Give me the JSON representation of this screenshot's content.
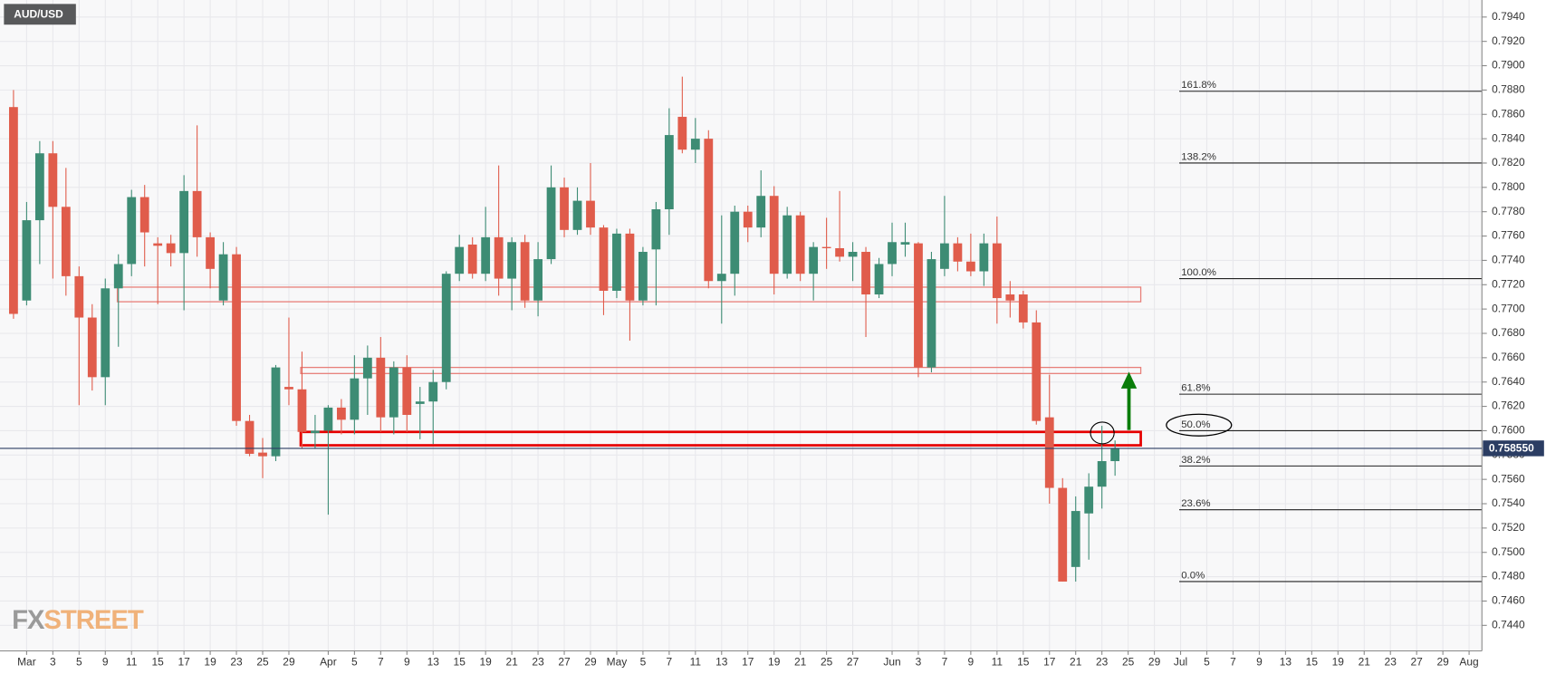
{
  "chart_data": {
    "type": "candlestick",
    "title": "AUD/USD",
    "logo": {
      "left": "FX",
      "right": "STREET"
    },
    "categories": [
      null,
      "Mar",
      null,
      "3",
      null,
      "5",
      null,
      "9",
      null,
      "11",
      null,
      "15",
      null,
      "17",
      null,
      "19",
      null,
      "23",
      null,
      "25",
      null,
      "29",
      null,
      null,
      "Apr",
      null,
      "5",
      null,
      "7",
      null,
      "9",
      null,
      "13",
      null,
      "15",
      null,
      "19",
      null,
      "21",
      null,
      "23",
      null,
      "27",
      null,
      "29",
      null,
      "May",
      null,
      "5",
      null,
      "7",
      null,
      "11",
      null,
      "13",
      null,
      "17",
      null,
      "19",
      null,
      "21",
      null,
      "25",
      null,
      "27",
      null,
      null,
      "Jun",
      null,
      "3",
      null,
      "7",
      null,
      "9",
      null,
      "11",
      null,
      "15",
      null,
      "17",
      null,
      "21",
      null,
      "23",
      null,
      "25",
      null,
      "29",
      null,
      "Jul",
      null,
      "5",
      null,
      "7",
      null,
      "9",
      null,
      "13",
      null,
      "15",
      null,
      "19",
      null,
      "21",
      null,
      "23",
      null,
      "27",
      null,
      "29",
      null,
      "Aug"
    ],
    "open": [
      0.7866,
      0.7707,
      0.7773,
      0.7828,
      0.7784,
      0.7727,
      0.7693,
      0.7644,
      0.7717,
      0.7737,
      0.7792,
      0.7754,
      0.7754,
      0.7746,
      0.7797,
      0.7759,
      0.7707,
      0.7745,
      0.7608,
      0.7582,
      0.7579,
      0.7636,
      0.7634,
      0.7598,
      0.76,
      0.7619,
      0.7609,
      0.7643,
      0.766,
      0.7611,
      0.7652,
      0.7622,
      0.7624,
      0.764,
      0.7729,
      0.7753,
      0.7729,
      0.7759,
      0.7725,
      0.7755,
      0.7707,
      0.7741,
      0.78,
      0.7765,
      0.7789,
      0.7767,
      0.7715,
      0.7762,
      0.7707,
      0.7749,
      0.7782,
      0.7858,
      0.7831,
      0.784,
      0.7723,
      0.7729,
      0.778,
      0.7767,
      0.7793,
      0.7729,
      0.7777,
      0.7729,
      0.7751,
      0.775,
      0.7743,
      0.7747,
      0.7712,
      0.7737,
      0.7753,
      0.7754,
      0.7652,
      0.7733,
      0.7754,
      0.7739,
      0.7731,
      0.7754,
      0.7712,
      0.7712,
      0.7689,
      0.7611,
      0.7553,
      0.7488,
      0.7532,
      0.7554,
      0.7575,
      null,
      null,
      null,
      null,
      null,
      null,
      null,
      null,
      null,
      null,
      null,
      null,
      null,
      null,
      null,
      null,
      null,
      null,
      null,
      null,
      null,
      null,
      null,
      null,
      null,
      null,
      null
    ],
    "high": [
      0.788,
      0.7788,
      0.7838,
      0.7838,
      0.7816,
      0.7735,
      0.7704,
      0.7725,
      0.7745,
      0.7798,
      0.7802,
      0.7759,
      0.7761,
      0.781,
      0.7851,
      0.7763,
      0.7755,
      0.7751,
      0.7613,
      0.7594,
      0.7654,
      0.7693,
      0.7665,
      0.7613,
      0.7621,
      0.7626,
      0.7662,
      0.767,
      0.7677,
      0.7657,
      0.7662,
      0.7636,
      0.765,
      0.7731,
      0.7761,
      0.7759,
      0.7784,
      0.7818,
      0.7759,
      0.7761,
      0.7755,
      0.7818,
      0.7808,
      0.78,
      0.782,
      0.7769,
      0.7766,
      0.7766,
      0.7751,
      0.7788,
      0.7865,
      0.7891,
      0.7857,
      0.7847,
      0.7777,
      0.7785,
      0.7785,
      0.7814,
      0.7801,
      0.7784,
      0.778,
      0.7755,
      0.7775,
      0.7797,
      0.7755,
      0.7751,
      0.7742,
      0.7771,
      0.7771,
      0.7755,
      0.7747,
      0.7793,
      0.7759,
      0.7762,
      0.7762,
      0.7776,
      0.7723,
      0.7715,
      0.7699,
      0.7646,
      0.7561,
      0.7546,
      0.7565,
      0.7604,
      0.7592,
      null,
      null,
      null,
      null,
      null,
      null,
      null,
      null,
      null,
      null,
      null,
      null,
      null,
      null,
      null,
      null,
      null,
      null,
      null,
      null,
      null,
      null,
      null,
      null,
      null,
      null,
      null
    ],
    "low": [
      0.7692,
      0.7703,
      0.7737,
      0.7725,
      0.7711,
      0.7621,
      0.7633,
      0.7621,
      0.7669,
      0.7727,
      0.7735,
      0.7704,
      0.7735,
      0.7699,
      0.7743,
      0.7717,
      0.7703,
      0.7604,
      0.7579,
      0.7561,
      0.7575,
      0.7621,
      0.7585,
      0.7585,
      0.7531,
      0.7597,
      0.7597,
      0.7613,
      0.7599,
      0.7597,
      0.7599,
      0.7593,
      0.7589,
      0.7634,
      0.7723,
      0.7725,
      0.7723,
      0.7711,
      0.7699,
      0.7701,
      0.7694,
      0.7737,
      0.7759,
      0.7761,
      0.7761,
      0.7695,
      0.7709,
      0.7674,
      0.7703,
      0.7703,
      0.7761,
      0.7828,
      0.782,
      0.7717,
      0.7688,
      0.7711,
      0.7755,
      0.7759,
      0.7712,
      0.7725,
      0.7723,
      0.7707,
      0.7733,
      0.7739,
      0.7723,
      0.7677,
      0.7709,
      0.7727,
      0.7743,
      0.7644,
      0.7648,
      0.7727,
      0.7731,
      0.7727,
      0.7719,
      0.7688,
      0.7693,
      0.7684,
      0.7605,
      0.754,
      0.7476,
      0.7476,
      0.7494,
      0.7536,
      0.7563,
      null,
      null,
      null,
      null,
      null,
      null,
      null,
      null,
      null,
      null,
      null,
      null,
      null,
      null,
      null,
      null,
      null,
      null,
      null,
      null,
      null,
      null,
      null,
      null,
      null,
      null,
      null
    ],
    "close": [
      0.7696,
      0.7773,
      0.7828,
      0.7784,
      0.7727,
      0.7693,
      0.7644,
      0.7717,
      0.7737,
      0.7792,
      0.7763,
      0.7752,
      0.7746,
      0.7797,
      0.7759,
      0.7733,
      0.7745,
      0.7608,
      0.7581,
      0.7579,
      0.7652,
      0.7634,
      0.7599,
      0.76,
      0.7619,
      0.7609,
      0.7643,
      0.766,
      0.7611,
      0.7652,
      0.7613,
      0.7624,
      0.764,
      0.7729,
      0.7751,
      0.7729,
      0.7759,
      0.7725,
      0.7755,
      0.7707,
      0.7741,
      0.78,
      0.7765,
      0.7789,
      0.7767,
      0.7715,
      0.7762,
      0.7707,
      0.7747,
      0.7782,
      0.7843,
      0.7831,
      0.784,
      0.7723,
      0.7729,
      0.778,
      0.7767,
      0.7793,
      0.7729,
      0.7777,
      0.7729,
      0.7751,
      0.775,
      0.7743,
      0.7747,
      0.7712,
      0.7737,
      0.7755,
      0.7755,
      0.7652,
      0.7741,
      0.7754,
      0.7739,
      0.7731,
      0.7754,
      0.7709,
      0.7707,
      0.7689,
      0.7608,
      0.7553,
      0.7476,
      0.7534,
      0.7554,
      0.7575,
      0.75855,
      null,
      null,
      null,
      null,
      null,
      null,
      null,
      null,
      null,
      null,
      null,
      null,
      null,
      null,
      null,
      null,
      null,
      null,
      null,
      null,
      null,
      null,
      null,
      null,
      null,
      null,
      null
    ],
    "up_color": "#3d8c74",
    "down_color": "#e05c4b",
    "ylim": [
      0.7419,
      0.7954
    ],
    "yticks": [
      {
        "value": 0.744,
        "label": "0.7440"
      },
      {
        "value": 0.746,
        "label": "0.7460"
      },
      {
        "value": 0.748,
        "label": "0.7480"
      },
      {
        "value": 0.75,
        "label": "0.7500"
      },
      {
        "value": 0.752,
        "label": "0.7520"
      },
      {
        "value": 0.754,
        "label": "0.7540"
      },
      {
        "value": 0.756,
        "label": "0.7560"
      },
      {
        "value": 0.758,
        "label": "0.7580"
      },
      {
        "value": 0.76,
        "label": "0.7600"
      },
      {
        "value": 0.762,
        "label": "0.7620"
      },
      {
        "value": 0.764,
        "label": "0.7640"
      },
      {
        "value": 0.766,
        "label": "0.7660"
      },
      {
        "value": 0.768,
        "label": "0.7680"
      },
      {
        "value": 0.77,
        "label": "0.7700"
      },
      {
        "value": 0.772,
        "label": "0.7720"
      },
      {
        "value": 0.774,
        "label": "0.7740"
      },
      {
        "value": 0.776,
        "label": "0.7760"
      },
      {
        "value": 0.778,
        "label": "0.7780"
      },
      {
        "value": 0.78,
        "label": "0.7800"
      },
      {
        "value": 0.782,
        "label": "0.7820"
      },
      {
        "value": 0.784,
        "label": "0.7840"
      },
      {
        "value": 0.786,
        "label": "0.7860"
      },
      {
        "value": 0.788,
        "label": "0.7880"
      },
      {
        "value": 0.79,
        "label": "0.7900"
      },
      {
        "value": 0.792,
        "label": "0.7920"
      },
      {
        "value": 0.794,
        "label": "0.7940"
      }
    ],
    "grid": true,
    "last_price": {
      "value": 0.75855,
      "label": "0.758550",
      "color": "#2b3d63"
    },
    "fib_levels": [
      {
        "label": "161.8%",
        "value": 0.7879
      },
      {
        "label": "138.2%",
        "value": 0.782
      },
      {
        "label": "100.0%",
        "value": 0.7725
      },
      {
        "label": "61.8%",
        "value": 0.763
      },
      {
        "label": "50.0%",
        "value": 0.76
      },
      {
        "label": "38.2%",
        "value": 0.7571
      },
      {
        "label": "23.6%",
        "value": 0.7535
      },
      {
        "label": "0.0%",
        "value": 0.7476
      }
    ],
    "zones": [
      {
        "top": 0.7718,
        "bottom": 0.7706,
        "color": "#e8807a"
      },
      {
        "top": 0.7652,
        "bottom": 0.7647,
        "color": "#e8807a"
      },
      {
        "top": 0.7599,
        "bottom": 0.7588,
        "color": "#e60000"
      }
    ]
  }
}
